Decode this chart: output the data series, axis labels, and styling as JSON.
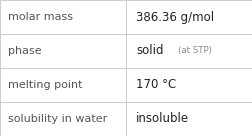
{
  "rows": [
    {
      "label": "molar mass",
      "value": "386.36 g/mol",
      "suffix": null
    },
    {
      "label": "phase",
      "value": "solid",
      "suffix": "(at STP)"
    },
    {
      "label": "melting point",
      "value": "170 °C",
      "suffix": null
    },
    {
      "label": "solubility in water",
      "value": "insoluble",
      "suffix": null
    }
  ],
  "background_color": "#ffffff",
  "border_color": "#cccccc",
  "label_color": "#555555",
  "value_color": "#222222",
  "suffix_color": "#888888",
  "label_fontsize": 8.0,
  "value_fontsize": 8.5,
  "suffix_fontsize": 6.2,
  "col_split": 0.5
}
